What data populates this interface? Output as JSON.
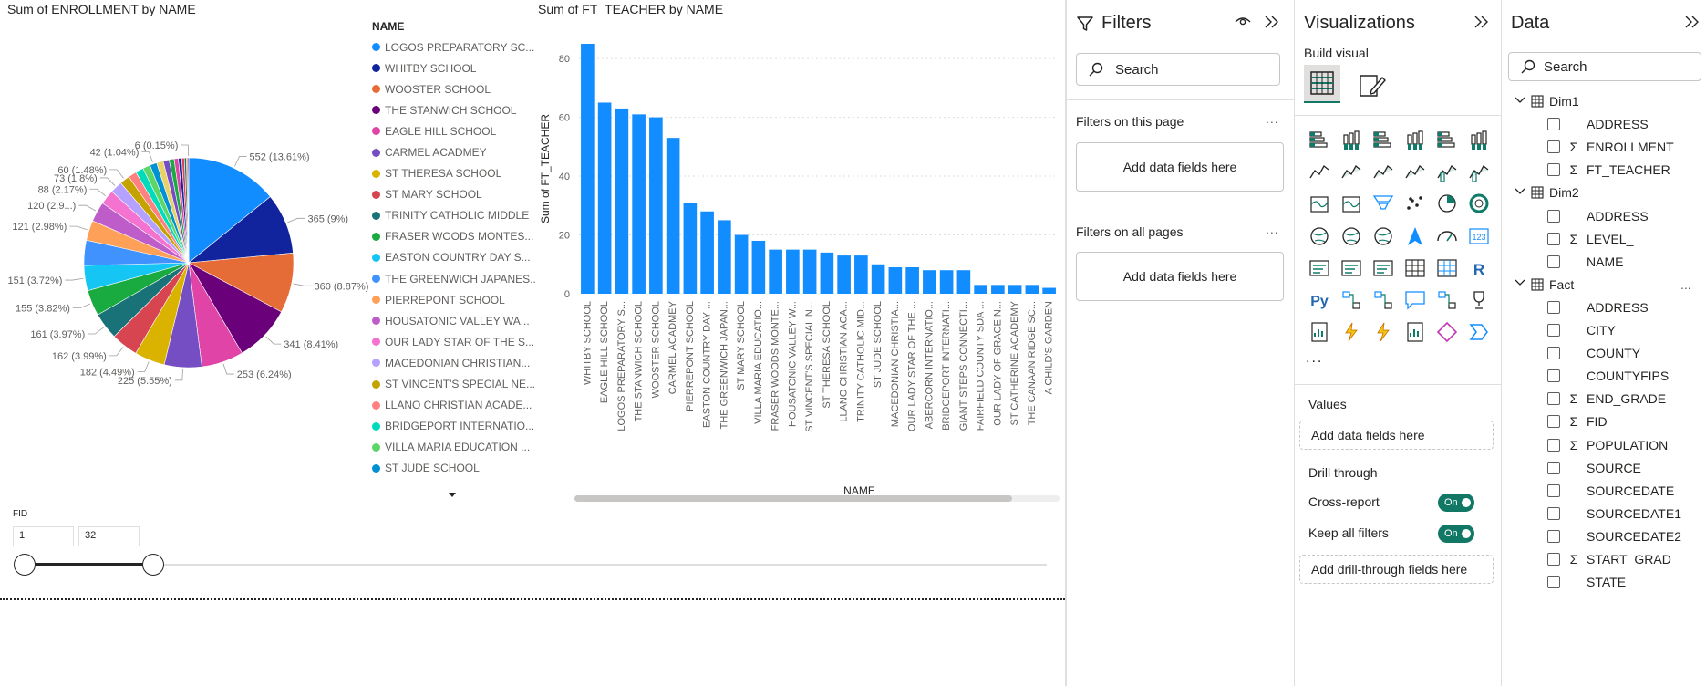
{
  "canvas": {
    "pie": {
      "title": "Sum of ENROLLMENT by NAME",
      "legend_title": "NAME",
      "legend": [
        {
          "label": "LOGOS PREPARATORY SC...",
          "color": "#118DFF"
        },
        {
          "label": "WHITBY SCHOOL",
          "color": "#12239E"
        },
        {
          "label": "WOOSTER SCHOOL",
          "color": "#E66C37"
        },
        {
          "label": "THE STANWICH SCHOOL",
          "color": "#6B007B"
        },
        {
          "label": "EAGLE HILL SCHOOL",
          "color": "#E044A7"
        },
        {
          "label": "CARMEL ACADMEY",
          "color": "#744EC2"
        },
        {
          "label": "ST THERESA SCHOOL",
          "color": "#D9B300"
        },
        {
          "label": "ST MARY SCHOOL",
          "color": "#D64550"
        },
        {
          "label": "TRINITY CATHOLIC MIDDLE",
          "color": "#197278"
        },
        {
          "label": "FRASER WOODS MONTES...",
          "color": "#1AAB40"
        },
        {
          "label": "EASTON COUNTRY DAY S...",
          "color": "#15C6F4"
        },
        {
          "label": "THE GREENWICH JAPANES...",
          "color": "#4092FF"
        },
        {
          "label": "PIERREPONT SCHOOL",
          "color": "#FFA058"
        },
        {
          "label": "HOUSATONIC VALLEY WA...",
          "color": "#BE5DC9"
        },
        {
          "label": "OUR LADY STAR OF THE S...",
          "color": "#F472D0"
        },
        {
          "label": "MACEDONIAN CHRISTIAN...",
          "color": "#B5A1FF"
        },
        {
          "label": "ST VINCENT'S SPECIAL NE...",
          "color": "#C4A200"
        },
        {
          "label": "LLANO CHRISTIAN ACADE...",
          "color": "#FF8080"
        },
        {
          "label": "BRIDGEPORT INTERNATIO...",
          "color": "#00DBBC"
        },
        {
          "label": "VILLA MARIA EDUCATION ...",
          "color": "#5BD667"
        },
        {
          "label": "ST JUDE SCHOOL",
          "color": "#0091D5"
        }
      ]
    },
    "bar": {
      "title": "Sum of FT_TEACHER by NAME",
      "color": "#118DFF"
    },
    "slicer": {
      "title": "FID",
      "min": "1",
      "max": "32"
    }
  },
  "chart_data": [
    {
      "type": "pie",
      "title": "Sum of ENROLLMENT by NAME",
      "legend_title": "NAME",
      "slices": [
        {
          "name": "LOGOS PREPARATORY SC...",
          "value": 552,
          "label": "552 (13.61%)",
          "color": "#118DFF"
        },
        {
          "name": "WHITBY SCHOOL",
          "value": 365,
          "label": "365 (9%)",
          "color": "#12239E"
        },
        {
          "name": "WOOSTER SCHOOL",
          "value": 360,
          "label": "360 (8.87%)",
          "color": "#E66C37"
        },
        {
          "name": "THE STANWICH SCHOOL",
          "value": 341,
          "label": "341 (8.41%)",
          "color": "#6B007B"
        },
        {
          "name": "EAGLE HILL SCHOOL",
          "value": 253,
          "label": "253 (6.24%)",
          "color": "#E044A7"
        },
        {
          "name": "CARMEL ACADMEY",
          "value": 225,
          "label": "225 (5.55%)",
          "color": "#744EC2"
        },
        {
          "name": "ST THERESA SCHOOL",
          "value": 182,
          "label": "182 (4.49%)",
          "color": "#D9B300"
        },
        {
          "name": "ST MARY SCHOOL",
          "value": 162,
          "label": "162 (3.99%)",
          "color": "#D64550"
        },
        {
          "name": "TRINITY CATHOLIC MIDDLE",
          "value": 161,
          "label": "161 (3.97%)",
          "color": "#197278"
        },
        {
          "name": "FRASER WOODS MONTES...",
          "value": 155,
          "label": "155 (3.82%)",
          "color": "#1AAB40"
        },
        {
          "name": "EASTON COUNTRY DAY S...",
          "value": 151,
          "label": "151 (3.72%)",
          "color": "#15C6F4"
        },
        {
          "name": "THE GREENWICH JAPANES...",
          "value": 151,
          "label": "",
          "color": "#4092FF"
        },
        {
          "name": "PIERREPONT SCHOOL",
          "value": 121,
          "label": "121 (2.98%)",
          "color": "#FFA058"
        },
        {
          "name": "HOUSATONIC VALLEY WA...",
          "value": 120,
          "label": "120 (2.9...)",
          "color": "#BE5DC9"
        },
        {
          "name": "OUR LADY STAR OF THE S...",
          "value": 88,
          "label": "88 (2.17%)",
          "color": "#F472D0"
        },
        {
          "name": "MACEDONIAN CHRISTIAN...",
          "value": 73,
          "label": "73 (1.8%)",
          "color": "#B5A1FF"
        },
        {
          "name": "ST VINCENT'S SPECIAL NE...",
          "value": 60,
          "label": "60 (1.48%)",
          "color": "#C4A200"
        },
        {
          "name": "LLANO CHRISTIAN ACADE...",
          "value": 50,
          "label": "",
          "color": "#FF8080"
        },
        {
          "name": "BRIDGEPORT INTERNATIO...",
          "value": 48,
          "label": "",
          "color": "#00DBBC"
        },
        {
          "name": "VILLA MARIA EDUCATION ...",
          "value": 45,
          "label": "",
          "color": "#5BD667"
        },
        {
          "name": "ST JUDE SCHOOL",
          "value": 42,
          "label": "42 (1.04%)",
          "color": "#0091D5"
        },
        {
          "name": "",
          "value": 40,
          "label": "",
          "color": "#E8D166"
        },
        {
          "name": "",
          "value": 36,
          "label": "",
          "color": "#744EC2"
        },
        {
          "name": "",
          "value": 30,
          "label": "",
          "color": "#1AAB40"
        },
        {
          "name": "",
          "value": 25,
          "label": "",
          "color": "#E044A7"
        },
        {
          "name": "",
          "value": 20,
          "label": "",
          "color": "#12239E"
        },
        {
          "name": "",
          "value": 16,
          "label": "",
          "color": "#D64550"
        },
        {
          "name": "",
          "value": 12,
          "label": "",
          "color": "#197278"
        },
        {
          "name": "",
          "value": 8,
          "label": "",
          "color": "#E66C37"
        },
        {
          "name": "",
          "value": 6,
          "label": "6 (0.15%)",
          "color": "#6B007B"
        }
      ]
    },
    {
      "type": "bar",
      "title": "Sum of FT_TEACHER by NAME",
      "xlabel": "NAME",
      "ylabel": "Sum of FT_TEACHER",
      "ylim": [
        0,
        85
      ],
      "yticks": [
        0,
        20,
        40,
        60,
        80
      ],
      "grid": true,
      "categories": [
        "WHITBY SCHOOL",
        "EAGLE HILL SCHOOL",
        "LOGOS PREPARATORY S...",
        "THE STANWICH SCHOOL",
        "WOOSTER SCHOOL",
        "CARMEL ACADMEY",
        "PIERREPONT SCHOOL",
        "EASTON COUNTRY DAY ...",
        "THE GREENWICH JAPAN...",
        "ST MARY SCHOOL",
        "VILLA MARIA EDUCATIO...",
        "FRASER WOODS MONTE...",
        "HOUSATONIC VALLEY W...",
        "ST VINCENT'S SPECIAL N...",
        "ST THERESA SCHOOL",
        "LLANO CHRISTIAN ACA...",
        "TRINITY CATHOLIC MID...",
        "ST JUDE SCHOOL",
        "MACEDONIAN CHRISTIA...",
        "OUR LADY STAR OF THE ...",
        "ABERCORN INTERNATIO...",
        "BRIDGEPORT INTERNATI...",
        "GIANT STEPS CONNECTI...",
        "FAIRFIELD COUNTY SDA ...",
        "OUR LADY OF GRACE N...",
        "ST CATHERINE ACADEMY",
        "THE CANAAN RIDGE SC...",
        "A CHILD'S GARDEN"
      ],
      "values": [
        85,
        65,
        63,
        61,
        60,
        53,
        31,
        28,
        25,
        20,
        18,
        15,
        15,
        15,
        14,
        13,
        13,
        10,
        9,
        9,
        8,
        8,
        8,
        3,
        3,
        3,
        3,
        2
      ]
    }
  ],
  "filters": {
    "title": "Filters",
    "search_placeholder": "Search",
    "on_this_page": "Filters on this page",
    "on_all_pages": "Filters on all pages",
    "add_fields": "Add data fields here",
    "ellipsis": "..."
  },
  "visualizations": {
    "title": "Visualizations",
    "build_visual": "Build visual",
    "more": "...",
    "values_label": "Values",
    "values_well": "Add data fields here",
    "drill_through": "Drill through",
    "cross_report": "Cross-report",
    "keep_all_filters": "Keep all filters",
    "toggle_on": "On",
    "drill_well": "Add drill-through fields here",
    "accent": "#117865"
  },
  "data_pane": {
    "title": "Data",
    "search_placeholder": "Search",
    "tables": [
      {
        "name": "Dim1",
        "fields": [
          {
            "name": "ADDRESS",
            "sum": false
          },
          {
            "name": "ENROLLMENT",
            "sum": true
          },
          {
            "name": "FT_TEACHER",
            "sum": true
          }
        ]
      },
      {
        "name": "Dim2",
        "fields": [
          {
            "name": "ADDRESS",
            "sum": false
          },
          {
            "name": "LEVEL_",
            "sum": true
          },
          {
            "name": "NAME",
            "sum": false
          }
        ]
      },
      {
        "name": "Fact",
        "fields": [
          {
            "name": "ADDRESS",
            "sum": false
          },
          {
            "name": "CITY",
            "sum": false
          },
          {
            "name": "COUNTY",
            "sum": false
          },
          {
            "name": "COUNTYFIPS",
            "sum": false
          },
          {
            "name": "END_GRADE",
            "sum": true
          },
          {
            "name": "FID",
            "sum": true
          },
          {
            "name": "POPULATION",
            "sum": true
          },
          {
            "name": "SOURCE",
            "sum": false
          },
          {
            "name": "SOURCEDATE",
            "sum": false
          },
          {
            "name": "SOURCEDATE1",
            "sum": false
          },
          {
            "name": "SOURCEDATE2",
            "sum": false
          },
          {
            "name": "START_GRAD",
            "sum": true
          },
          {
            "name": "STATE",
            "sum": false
          }
        ]
      }
    ],
    "fact_more": "..."
  }
}
